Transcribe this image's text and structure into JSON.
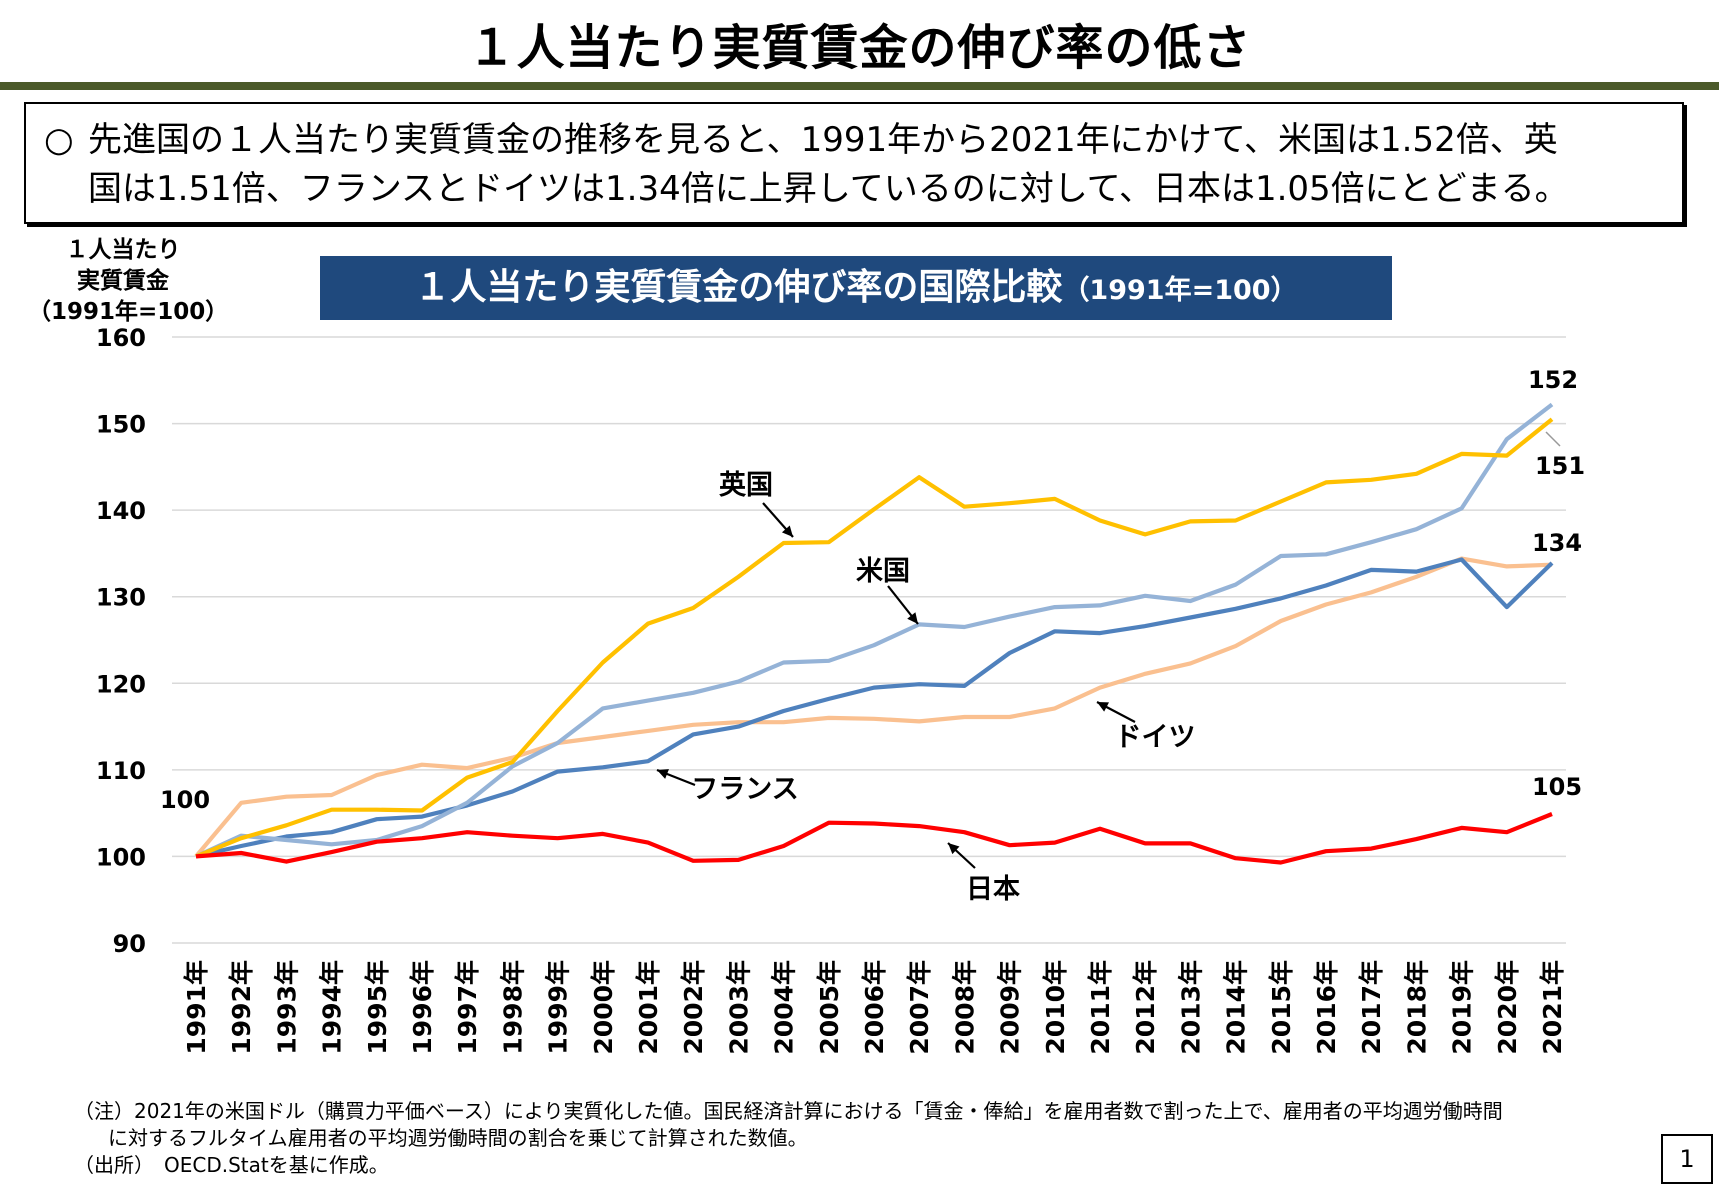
{
  "header": {
    "title": "１人当たり実質賃金の伸び率の低さ"
  },
  "summary": {
    "marker": "○",
    "line1": "先進国の１人当たり実質賃金の推移を見ると、1991年から2021年にかけて、米国は1.52倍、英",
    "line2": "国は1.51倍、フランスとドイツは1.34倍に上昇しているのに対して、日本は1.05倍にとどまる。"
  },
  "yaxis_label": {
    "line1": "１人当たり",
    "line2": "実質賃金",
    "line3": "（1991年=100）"
  },
  "chart_banner": {
    "title": "１人当たり実質賃金の伸び率の国際比較",
    "subtitle": "（1991年=100）"
  },
  "chart_data": {
    "type": "line",
    "title": "１人当たり実質賃金の伸び率の国際比較（1991年=100）",
    "ylabel": "１人当たり実質賃金（1991年=100）",
    "xlabel": "",
    "ylim": [
      90,
      160
    ],
    "yticks": [
      "90",
      "100",
      "110",
      "120",
      "130",
      "140",
      "150",
      "160"
    ],
    "grid": true,
    "categories": [
      "1991年",
      "1992年",
      "1993年",
      "1994年",
      "1995年",
      "1996年",
      "1997年",
      "1998年",
      "1999年",
      "2000年",
      "2001年",
      "2002年",
      "2003年",
      "2004年",
      "2005年",
      "2006年",
      "2007年",
      "2008年",
      "2009年",
      "2010年",
      "2011年",
      "2012年",
      "2013年",
      "2014年",
      "2015年",
      "2016年",
      "2017年",
      "2018年",
      "2019年",
      "2020年",
      "2021年"
    ],
    "series": [
      {
        "name": "英国",
        "color": "#ffc000",
        "values": [
          100,
          102.1,
          103.6,
          105.4,
          105.4,
          105.3,
          109.1,
          110.9,
          116.8,
          122.4,
          126.9,
          128.7,
          132.3,
          136.2,
          136.3,
          140.1,
          143.8,
          140.4,
          140.8,
          141.3,
          138.8,
          137.2,
          138.7,
          138.8,
          141.0,
          143.2,
          143.5,
          144.2,
          146.5,
          146.3,
          150.5
        ]
      },
      {
        "name": "米国",
        "color": "#95b3d7",
        "values": [
          100,
          102.4,
          101.9,
          101.4,
          101.9,
          103.5,
          106.2,
          110.4,
          113.1,
          117.1,
          118.0,
          118.9,
          120.2,
          122.4,
          122.6,
          124.4,
          126.8,
          126.5,
          127.7,
          128.8,
          129.0,
          130.1,
          129.5,
          131.4,
          134.7,
          134.9,
          136.3,
          137.8,
          140.2,
          148.2,
          152.2
        ]
      },
      {
        "name": "フランス",
        "color": "#4f81bd",
        "values": [
          100,
          101.2,
          102.3,
          102.8,
          104.3,
          104.6,
          105.9,
          107.5,
          109.8,
          110.3,
          111.0,
          114.1,
          115.0,
          116.8,
          118.2,
          119.5,
          119.9,
          119.7,
          123.5,
          126.0,
          125.8,
          126.6,
          127.6,
          128.6,
          129.8,
          131.3,
          133.1,
          132.9,
          134.3,
          128.8,
          133.9
        ]
      },
      {
        "name": "ドイツ",
        "color": "#fac090",
        "values": [
          100,
          106.2,
          106.9,
          107.1,
          109.4,
          110.6,
          110.2,
          111.4,
          113.1,
          113.8,
          114.5,
          115.2,
          115.5,
          115.5,
          116.0,
          115.9,
          115.6,
          116.1,
          116.1,
          117.1,
          119.5,
          121.1,
          122.3,
          124.3,
          127.2,
          129.1,
          130.5,
          132.3,
          134.4,
          133.5,
          133.7
        ]
      },
      {
        "name": "日本",
        "color": "#ff0000",
        "values": [
          100,
          100.4,
          99.4,
          100.5,
          101.7,
          102.1,
          102.8,
          102.4,
          102.1,
          102.6,
          101.6,
          99.5,
          99.6,
          101.2,
          103.9,
          103.8,
          103.5,
          102.8,
          101.3,
          101.6,
          103.2,
          101.5,
          101.5,
          99.8,
          99.3,
          100.6,
          100.9,
          102.0,
          103.3,
          102.8,
          104.9
        ]
      }
    ],
    "annotations": [
      {
        "text": "100",
        "note": "start value 1991"
      },
      {
        "text": "152",
        "series": "米国"
      },
      {
        "text": "151",
        "series": "英国"
      },
      {
        "text": "134",
        "series": "フランス・ドイツ"
      },
      {
        "text": "105",
        "series": "日本"
      }
    ]
  },
  "notes": {
    "line1": "（注）2021年の米国ドル（購買力平価ベース）により実質化した値。国民経済計算における「賃金・俸給」を雇用者数で割った上で、雇用者の平均週労働時間",
    "line2": "に対するフルタイム雇用者の平均週労働時間の割合を乗じて計算された数値。",
    "line3": "（出所）　OECD.Statを基に作成。"
  },
  "page_number": "1"
}
